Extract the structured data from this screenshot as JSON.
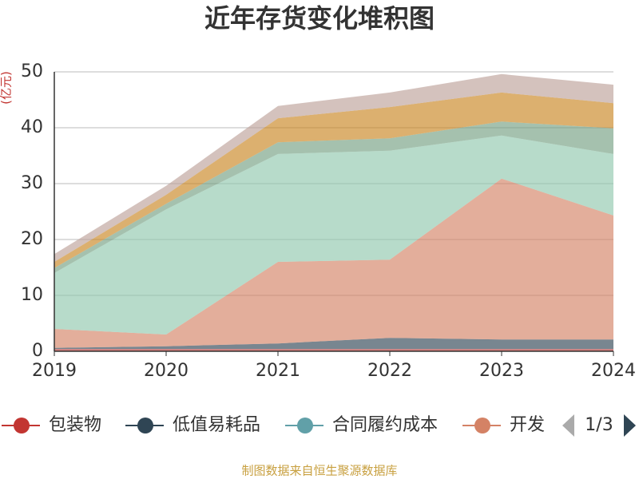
{
  "chart_data": {
    "type": "stacked_area",
    "title": "近年存货变化堆积图",
    "y_unit": "(亿元)",
    "categories": [
      "2019",
      "2020",
      "2021",
      "2022",
      "2023",
      "2024"
    ],
    "series": [
      {
        "name": "包装物",
        "color": "#c23531",
        "values": [
          0.4,
          0.4,
          0.4,
          0.4,
          0.4,
          0.4
        ]
      },
      {
        "name": "低值易耗品",
        "color": "#2f4554",
        "values": [
          0.2,
          0.5,
          1.0,
          2.0,
          1.7,
          1.7
        ]
      },
      {
        "name": "合同履约成本",
        "color": "#61a0a8",
        "values": [
          0,
          0,
          0,
          0,
          0,
          0
        ]
      },
      {
        "name": "开发",
        "color": "#d48265",
        "values": [
          3.4,
          2.1,
          14.6,
          14.0,
          28.8,
          22.2
        ]
      },
      {
        "color": "#91c7ae",
        "values": [
          10.0,
          22.4,
          19.3,
          19.5,
          7.7,
          11.0
        ]
      },
      {
        "color": "#749f83",
        "values": [
          0.9,
          1.0,
          2.1,
          2.2,
          2.5,
          4.6
        ]
      },
      {
        "color": "#ca8622",
        "values": [
          1.1,
          1.6,
          4.3,
          5.6,
          5.2,
          4.5
        ]
      },
      {
        "color": "#bda29a",
        "values": [
          1.4,
          1.6,
          2.2,
          2.6,
          3.3,
          3.3
        ]
      }
    ],
    "ylim": [
      0,
      50
    ],
    "yticks": [
      0,
      10,
      20,
      30,
      40,
      50
    ],
    "grid": true,
    "legend_page": "1/3",
    "source": "制图数据来自恒生聚源数据库"
  }
}
